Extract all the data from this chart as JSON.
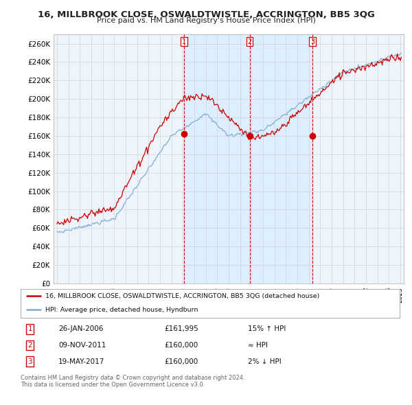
{
  "title": "16, MILLBROOK CLOSE, OSWALDTWISTLE, ACCRINGTON, BB5 3QG",
  "subtitle": "Price paid vs. HM Land Registry's House Price Index (HPI)",
  "ylabel_values": [
    "£0",
    "£20K",
    "£40K",
    "£60K",
    "£80K",
    "£100K",
    "£120K",
    "£140K",
    "£160K",
    "£180K",
    "£200K",
    "£220K",
    "£240K",
    "£260K"
  ],
  "yticks": [
    0,
    20000,
    40000,
    60000,
    80000,
    100000,
    120000,
    140000,
    160000,
    180000,
    200000,
    220000,
    240000,
    260000
  ],
  "ylim": [
    0,
    270000
  ],
  "legend_line1": "16, MILLBROOK CLOSE, OSWALDTWISTLE, ACCRINGTON, BB5 3QG (detached house)",
  "legend_line2": "HPI: Average price, detached house, Hyndburn",
  "sale1_date": "26-JAN-2006",
  "sale1_price": 161995,
  "sale1_label": "15% ↑ HPI",
  "sale2_date": "09-NOV-2011",
  "sale2_price": 160000,
  "sale2_label": "≈ HPI",
  "sale3_date": "19-MAY-2017",
  "sale3_price": 160000,
  "sale3_label": "2% ↓ HPI",
  "footnote1": "Contains HM Land Registry data © Crown copyright and database right 2024.",
  "footnote2": "This data is licensed under the Open Government Licence v3.0.",
  "red_color": "#cc0000",
  "blue_color": "#7dadd4",
  "shade_color": "#ddeeff",
  "grid_color": "#cccccc",
  "bg_color": "#ffffff",
  "plot_bg": "#eef4fb"
}
